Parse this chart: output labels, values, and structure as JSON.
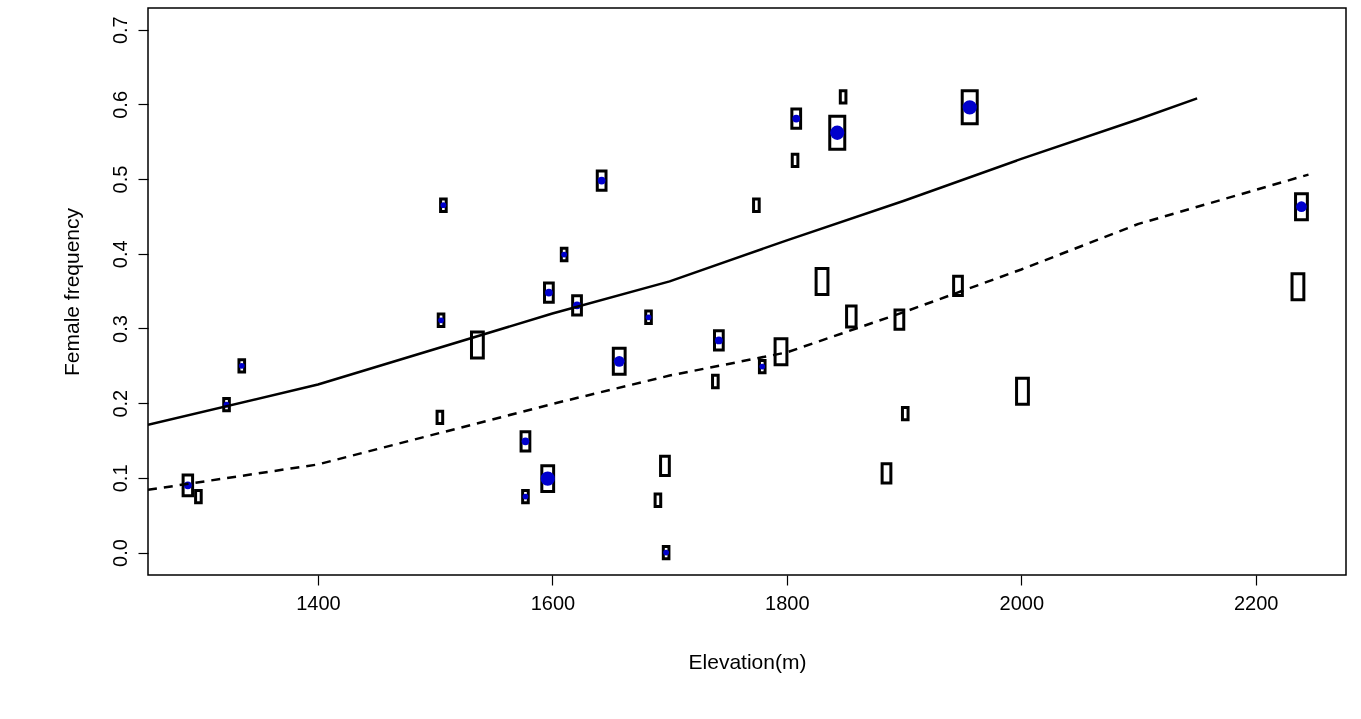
{
  "chart_data": {
    "type": "bubble",
    "xlabel": "Elevation(m)",
    "ylabel": "Female frequency",
    "xlim": [
      1255,
      2277
    ],
    "ylim": [
      -0.03,
      0.729
    ],
    "xticks": [
      1400,
      1600,
      1800,
      2000,
      2200
    ],
    "yticks": [
      {
        "value": 0,
        "label": "0.0"
      },
      0.1,
      0.2,
      0.3,
      0.4,
      0.5,
      0.6,
      0.7
    ],
    "grid": false,
    "series": [
      {
        "marker": "square",
        "color": "#000000",
        "x": [
          1289,
          1298,
          1322,
          1335,
          1504,
          1505,
          1507,
          1536,
          1577,
          1577,
          1596,
          1597,
          1610,
          1621,
          1642,
          1657,
          1682,
          1696,
          1690,
          1697,
          1742,
          1739,
          1774,
          1779,
          1795,
          1808,
          1807,
          1830,
          1848,
          1843,
          1855,
          1885,
          1896,
          1901,
          1946,
          1956,
          2001,
          2239,
          2236
        ],
        "values": [
          0.09,
          0.075,
          0.198,
          0.25,
          0.181,
          0.311,
          0.465,
          0.278,
          0.075,
          0.149,
          0.099,
          0.348,
          0.399,
          0.331,
          0.498,
          0.256,
          0.315,
          0.116,
          0.07,
          0.0,
          0.284,
          0.229,
          0.465,
          0.249,
          0.269,
          0.581,
          0.525,
          0.363,
          0.61,
          0.562,
          0.316,
          0.106,
          0.312,
          0.186,
          0.357,
          0.596,
          0.216,
          0.463,
          0.356
        ],
        "sizes": [
          0.4,
          0.14,
          0.14,
          0.14,
          0.14,
          0.14,
          0.14,
          0.62,
          0.14,
          0.34,
          0.62,
          0.34,
          0.14,
          0.34,
          0.34,
          0.62,
          0.14,
          0.34,
          0.14,
          0.14,
          0.34,
          0.14,
          0.14,
          0.14,
          0.62,
          0.34,
          0.14,
          0.62,
          0.14,
          1,
          0.4,
          0.34,
          0.34,
          0.14,
          0.34,
          1,
          0.62,
          0.62,
          0.62
        ]
      },
      {
        "marker": "circle",
        "color": "#0000cc",
        "x": [
          1289,
          1322,
          1335,
          1505,
          1507,
          1577,
          1577,
          1596,
          1597,
          1610,
          1621,
          1642,
          1657,
          1682,
          1697,
          1742,
          1779,
          1808,
          1843,
          1956,
          2239
        ],
        "values": [
          0.09,
          0.198,
          0.25,
          0.311,
          0.465,
          0.075,
          0.149,
          0.099,
          0.348,
          0.399,
          0.331,
          0.498,
          0.256,
          0.315,
          0.0,
          0.284,
          0.249,
          0.581,
          0.562,
          0.596,
          0.463
        ],
        "sizes": [
          0.11,
          0.06,
          0.06,
          0.06,
          0.06,
          0.06,
          0.11,
          0.37,
          0.11,
          0.06,
          0.11,
          0.11,
          0.21,
          0.06,
          0.06,
          0.11,
          0.06,
          0.11,
          0.37,
          0.37,
          0.21
        ]
      },
      {
        "type": "line",
        "line_style": "solid",
        "color": "#000000",
        "x": [
          1255,
          1400,
          1600,
          1700,
          1800,
          1900,
          2000,
          2100,
          2150
        ],
        "values": [
          0.171,
          0.225,
          0.32,
          0.363,
          0.418,
          0.471,
          0.527,
          0.58,
          0.608
        ]
      },
      {
        "type": "line",
        "line_style": "dashed",
        "color": "#000000",
        "x": [
          1255,
          1400,
          1600,
          1700,
          1800,
          1900,
          2000,
          2100,
          2245
        ],
        "values": [
          0.084,
          0.118,
          0.199,
          0.237,
          0.268,
          0.322,
          0.379,
          0.44,
          0.506
        ]
      }
    ]
  }
}
